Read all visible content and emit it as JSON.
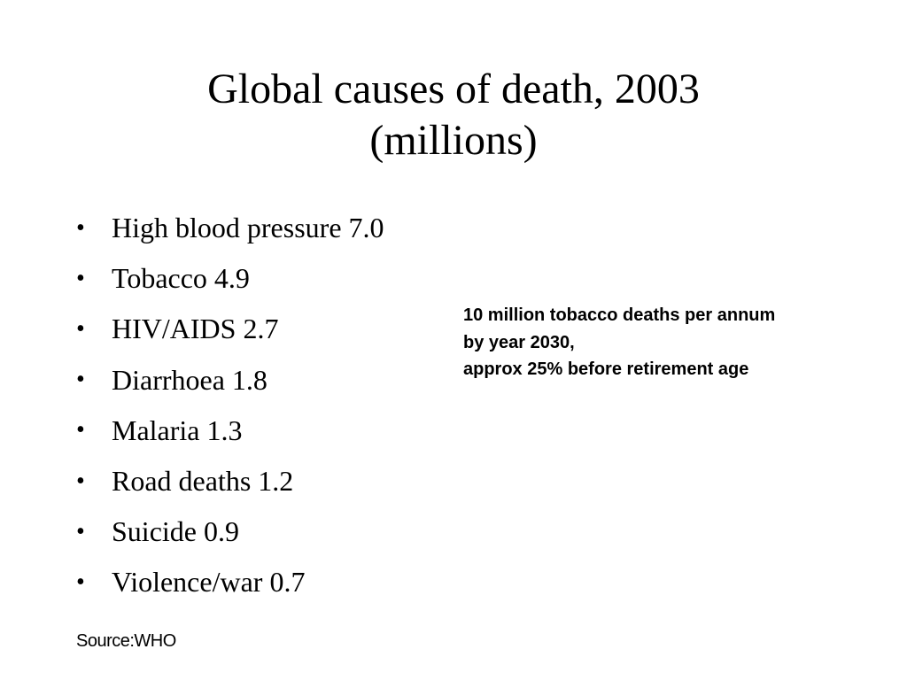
{
  "slide": {
    "title_lines": [
      "Global causes of death, 2003",
      "(millions)"
    ],
    "bullet_symbol": "•",
    "causes": [
      {
        "text": "High blood pressure 7.0"
      },
      {
        "text": "Tobacco 4.9"
      },
      {
        "text": "HIV/AIDS 2.7"
      },
      {
        "text": "Diarrhoea 1.8"
      },
      {
        "text": "Malaria 1.3"
      },
      {
        "text": "Road deaths 1.2"
      },
      {
        "text": "Suicide 0.9"
      },
      {
        "text": "Violence/war 0.7"
      }
    ],
    "callout_lines": [
      "10 million tobacco deaths per annum",
      "by year 2030,",
      "approx 25% before retirement age"
    ],
    "source": "Source:WHO"
  }
}
